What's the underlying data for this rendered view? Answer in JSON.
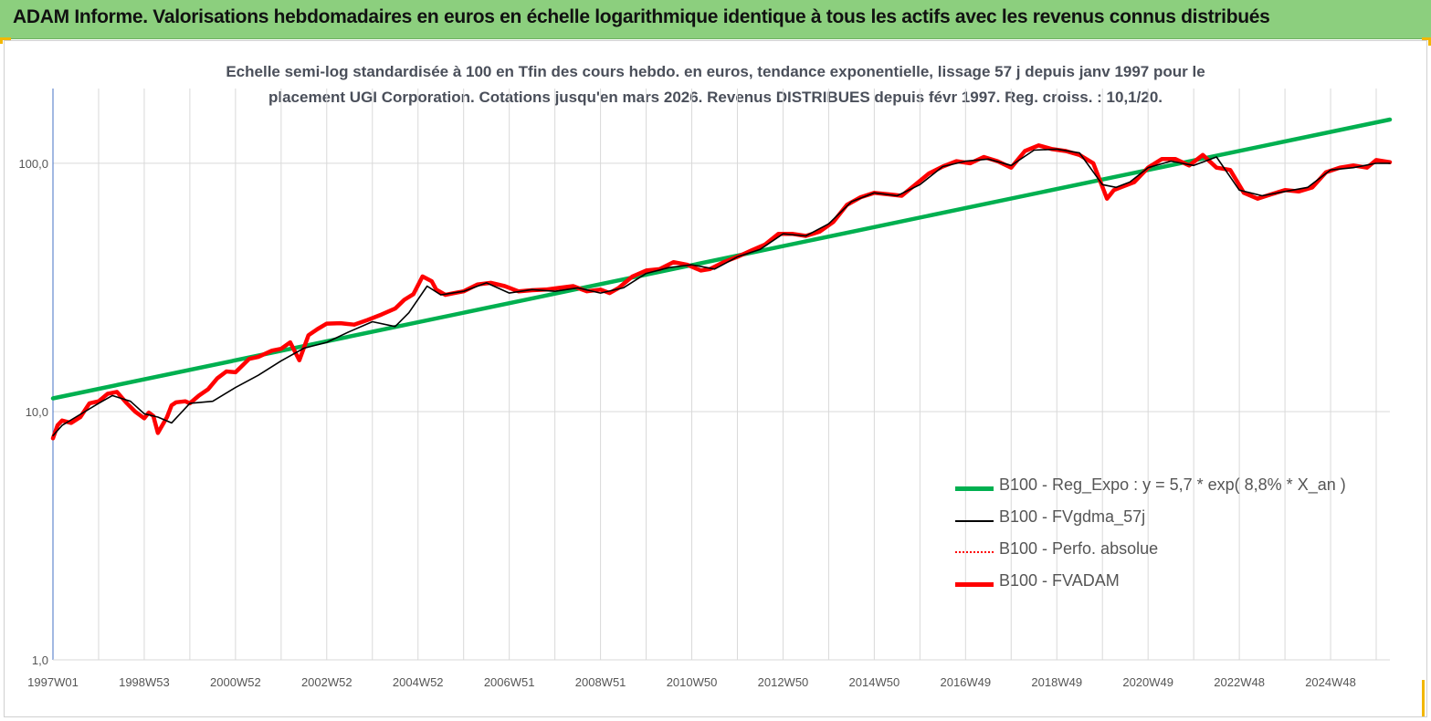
{
  "banner": {
    "title": "ADAM Informe. Valorisations hebdomadaires en euros en échelle logarithmique identique à tous les actifs avec les revenus connus distribués"
  },
  "chart_data": {
    "type": "line",
    "subtitle_line1": "Echelle semi-log standardisée à 100 en Tfin des cours hebdo. en euros, tendance exponentielle, lissage 57 j depuis janv 1997 pour le",
    "subtitle_line2": "placement UGI Corporation. Cotations jusqu'en mars 2026. Revenus DISTRIBUES depuis févr 1997. Reg. croiss. : 10,1/20.",
    "y_scale": "log",
    "ylim": [
      1,
      200
    ],
    "y_ticks": [
      {
        "value": 1,
        "label": "1,0"
      },
      {
        "value": 10,
        "label": "10,0"
      },
      {
        "value": 100,
        "label": "100,0"
      }
    ],
    "xlim": [
      1997.0,
      2026.3
    ],
    "x_ticks": [
      {
        "year": 1997.0,
        "label": "1997W01"
      },
      {
        "year": 1999.0,
        "label": "1998W53"
      },
      {
        "year": 2001.0,
        "label": "2000W52"
      },
      {
        "year": 2003.0,
        "label": "2002W52"
      },
      {
        "year": 2005.0,
        "label": "2004W52"
      },
      {
        "year": 2007.0,
        "label": "2006W51"
      },
      {
        "year": 2009.0,
        "label": "2008W51"
      },
      {
        "year": 2011.0,
        "label": "2010W50"
      },
      {
        "year": 2013.0,
        "label": "2012W50"
      },
      {
        "year": 2015.0,
        "label": "2014W50"
      },
      {
        "year": 2017.0,
        "label": "2016W49"
      },
      {
        "year": 2019.0,
        "label": "2018W49"
      },
      {
        "year": 2021.0,
        "label": "2020W49"
      },
      {
        "year": 2023.0,
        "label": "2022W48"
      },
      {
        "year": 2025.0,
        "label": "2024W48"
      }
    ],
    "grid": "vertical and horizontal",
    "legend_position": "bottom-right",
    "series": [
      {
        "name": "B100 - Reg_Expo : y = 5,7 * exp( 8,8% *  X_an )",
        "color": "#00b050",
        "style": "solid-thick",
        "x": [
          1997.0,
          2026.3
        ],
        "y": [
          11.3,
          150
        ]
      },
      {
        "name": "B100 - FVgdma_57j",
        "color": "#000000",
        "style": "solid-thin",
        "x": [
          1997.0,
          1997.2,
          1997.5,
          1998.0,
          1998.3,
          1998.7,
          1999.0,
          1999.3,
          1999.6,
          2000.0,
          2000.5,
          2001.0,
          2001.5,
          2002.0,
          2002.5,
          2003.0,
          2003.5,
          2004.0,
          2004.5,
          2004.8,
          2005.2,
          2005.5,
          2006.0,
          2006.5,
          2007.0,
          2007.5,
          2008.0,
          2008.5,
          2009.0,
          2009.5,
          2010.0,
          2010.5,
          2011.0,
          2011.5,
          2012.0,
          2012.5,
          2013.0,
          2013.5,
          2014.0,
          2014.5,
          2015.0,
          2015.5,
          2016.0,
          2016.5,
          2017.0,
          2017.5,
          2018.0,
          2018.5,
          2019.0,
          2019.5,
          2020.0,
          2020.3,
          2020.6,
          2021.0,
          2021.5,
          2022.0,
          2022.5,
          2023.0,
          2023.5,
          2024.0,
          2024.5,
          2025.0,
          2025.5,
          2026.0,
          2026.3
        ],
        "y": [
          8.0,
          8.8,
          9.5,
          10.8,
          11.6,
          11.0,
          9.8,
          9.5,
          9.0,
          10.8,
          11.0,
          12.5,
          14.0,
          16.0,
          18.0,
          19.0,
          21.0,
          23.0,
          22.0,
          25.0,
          32.0,
          29.5,
          30.5,
          33.0,
          30.0,
          31.0,
          30.5,
          31.5,
          30.0,
          31.5,
          36.0,
          38.0,
          39.0,
          37.5,
          42.0,
          45.0,
          52.0,
          51.0,
          57.0,
          70.0,
          76.0,
          74.0,
          82.0,
          97.0,
          102.0,
          104.0,
          98.0,
          113.0,
          114.0,
          110.0,
          82.0,
          80.0,
          84.0,
          96.0,
          102.0,
          98.0,
          106.0,
          78.0,
          74.0,
          77.0,
          80.0,
          94.0,
          96.0,
          100.0,
          100.0
        ]
      },
      {
        "name": "B100 - Perfo. absolue",
        "color": "#ff0000",
        "style": "dotted",
        "x": [],
        "y": []
      },
      {
        "name": "B100 - FVADAM",
        "color": "#ff0000",
        "style": "solid-thick",
        "x": [
          1997.0,
          1997.1,
          1997.2,
          1997.4,
          1997.6,
          1997.8,
          1998.0,
          1998.2,
          1998.4,
          1998.6,
          1998.8,
          1999.0,
          1999.1,
          1999.2,
          1999.3,
          1999.5,
          1999.6,
          1999.7,
          1999.9,
          2000.0,
          2000.2,
          2000.4,
          2000.6,
          2000.8,
          2001.0,
          2001.3,
          2001.5,
          2001.8,
          2002.0,
          2002.2,
          2002.4,
          2002.6,
          2002.8,
          2003.0,
          2003.3,
          2003.6,
          2003.9,
          2004.2,
          2004.5,
          2004.7,
          2004.9,
          2005.1,
          2005.3,
          2005.4,
          2005.6,
          2005.8,
          2006.0,
          2006.3,
          2006.6,
          2006.9,
          2007.2,
          2007.5,
          2007.8,
          2008.1,
          2008.4,
          2008.7,
          2009.0,
          2009.2,
          2009.4,
          2009.7,
          2010.0,
          2010.3,
          2010.6,
          2010.9,
          2011.2,
          2011.4,
          2011.7,
          2012.0,
          2012.3,
          2012.6,
          2012.9,
          2013.2,
          2013.5,
          2013.8,
          2014.1,
          2014.4,
          2014.7,
          2015.0,
          2015.3,
          2015.6,
          2015.9,
          2016.2,
          2016.5,
          2016.8,
          2017.1,
          2017.4,
          2017.7,
          2018.0,
          2018.3,
          2018.6,
          2018.9,
          2019.2,
          2019.5,
          2019.8,
          2020.1,
          2020.25,
          2020.4,
          2020.7,
          2021.0,
          2021.3,
          2021.6,
          2021.9,
          2022.2,
          2022.5,
          2022.8,
          2023.1,
          2023.4,
          2023.7,
          2024.0,
          2024.3,
          2024.6,
          2024.9,
          2025.2,
          2025.5,
          2025.8,
          2026.0,
          2026.3
        ],
        "y": [
          7.8,
          8.8,
          9.2,
          9.0,
          9.5,
          10.8,
          11.0,
          11.8,
          12.0,
          10.9,
          10.0,
          9.4,
          9.9,
          9.6,
          8.2,
          9.5,
          10.6,
          10.9,
          11.0,
          10.8,
          11.6,
          12.3,
          13.6,
          14.5,
          14.4,
          16.3,
          16.6,
          17.6,
          17.9,
          19.0,
          16.1,
          20.3,
          21.5,
          22.6,
          22.7,
          22.4,
          23.4,
          24.6,
          26.0,
          28.2,
          29.7,
          35.0,
          33.5,
          31.0,
          29.5,
          30.0,
          30.5,
          32.5,
          33.0,
          32.0,
          30.5,
          30.8,
          31.0,
          31.5,
          32.0,
          30.5,
          31.0,
          30.0,
          31.5,
          35.0,
          37.0,
          37.5,
          40.0,
          39.0,
          37.0,
          37.5,
          40.0,
          42.0,
          44.5,
          47.0,
          52.0,
          52.0,
          51.0,
          53.0,
          58.0,
          68.0,
          73.0,
          76.0,
          75.0,
          74.0,
          82.0,
          91.0,
          97.0,
          102.0,
          100.0,
          106.0,
          102.0,
          96.0,
          112.0,
          118.0,
          114.0,
          112.0,
          108.0,
          100.0,
          72.0,
          78.0,
          80.0,
          84.0,
          96.0,
          104.0,
          104.0,
          98.0,
          108.0,
          96.0,
          94.0,
          76.0,
          72.0,
          75.0,
          78.0,
          77.0,
          80.0,
          92.0,
          96.0,
          98.0,
          96.0,
          103.0,
          101.0
        ]
      }
    ]
  }
}
